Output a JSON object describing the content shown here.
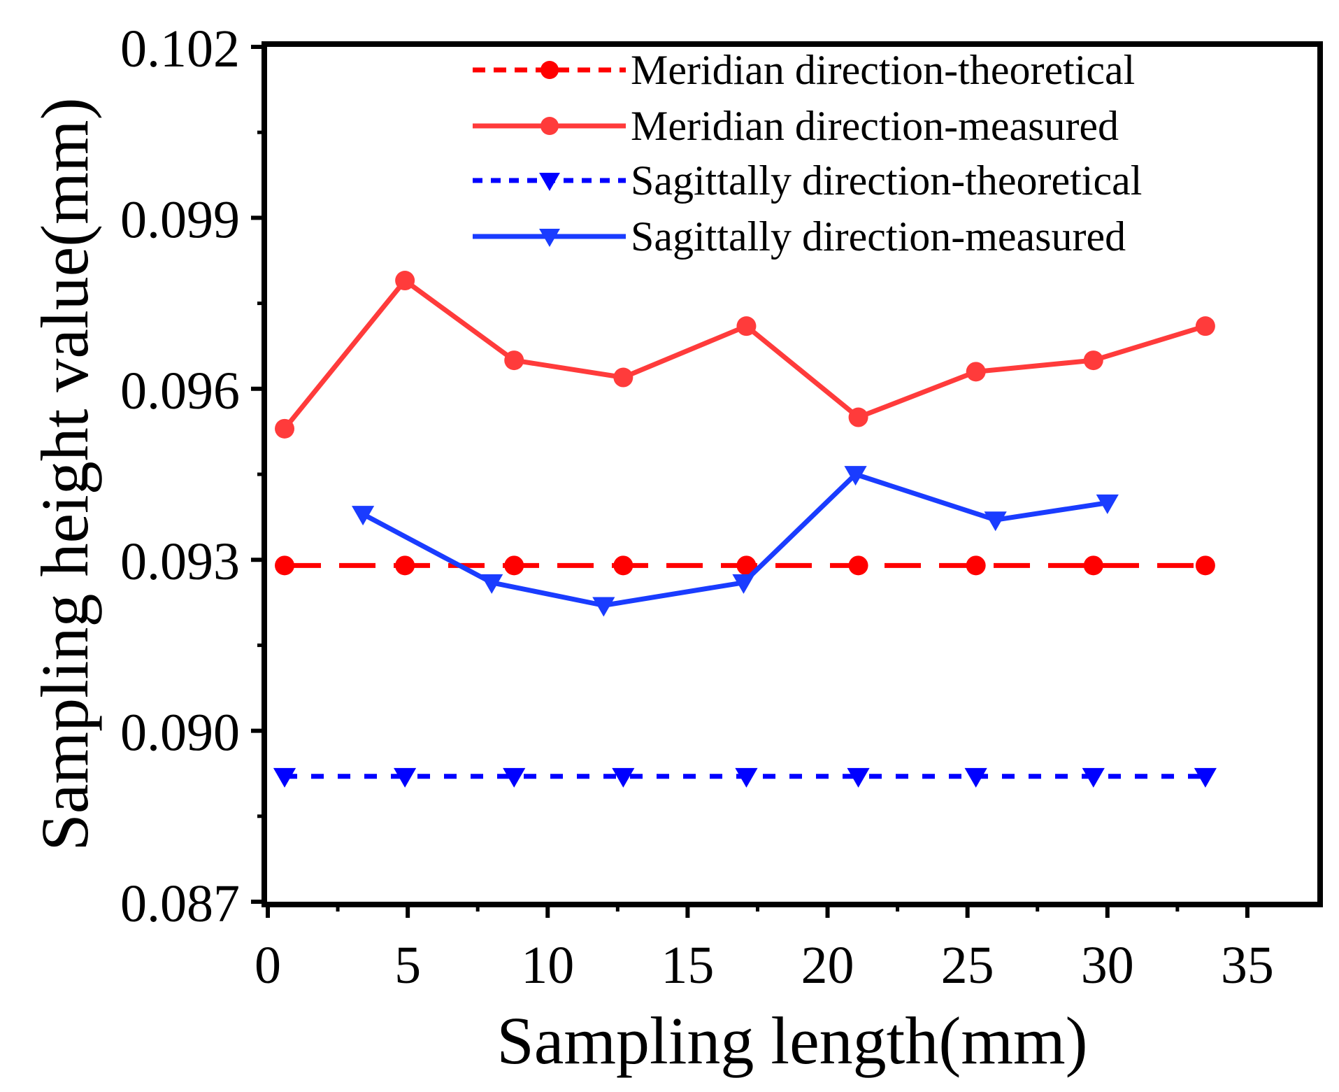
{
  "chart_data": {
    "type": "line",
    "xlabel": "Sampling length(mm)",
    "ylabel": "Sampling height value(mm)",
    "xlim": [
      0,
      37.5
    ],
    "ylim": [
      0.087,
      0.102
    ],
    "xticks": [
      "0",
      "5",
      "10",
      "15",
      "20",
      "25",
      "30",
      "35"
    ],
    "yticks": [
      "0.087",
      "0.090",
      "0.093",
      "0.096",
      "0.099",
      "0.102"
    ],
    "grid": false,
    "legend_position": "top-right",
    "series": [
      {
        "name": "Meridian direction-theoretical",
        "color": "#ff0000",
        "line": "dashed",
        "marker": "circle",
        "x": [
          0.6,
          4.9,
          8.8,
          12.7,
          17.1,
          21.1,
          25.3,
          29.5,
          33.5
        ],
        "y": [
          0.0929,
          0.0929,
          0.0929,
          0.0929,
          0.0929,
          0.0929,
          0.0929,
          0.0929,
          0.0929
        ]
      },
      {
        "name": "Meridian direction-measured",
        "color": "#ff3b3b",
        "line": "solid",
        "marker": "circle",
        "x": [
          0.6,
          4.9,
          8.8,
          12.7,
          17.1,
          21.1,
          25.3,
          29.5,
          33.5
        ],
        "y": [
          0.0953,
          0.0979,
          0.0965,
          0.0962,
          0.0971,
          0.0955,
          0.0963,
          0.0965,
          0.0971
        ]
      },
      {
        "name": "Sagittally direction-theoretical",
        "color": "#0000ff",
        "line": "dotted",
        "marker": "triangle-down",
        "x": [
          0.6,
          4.9,
          8.8,
          12.7,
          17.1,
          21.1,
          25.3,
          29.5,
          33.5
        ],
        "y": [
          0.0892,
          0.0892,
          0.0892,
          0.0892,
          0.0892,
          0.0892,
          0.0892,
          0.0892,
          0.0892
        ]
      },
      {
        "name": "Sagittally direction-measured",
        "color": "#1a3cff",
        "line": "solid",
        "marker": "triangle-down",
        "x": [
          3.4,
          8.0,
          12.0,
          17.0,
          21.0,
          26.0,
          30.0
        ],
        "y": [
          0.0938,
          0.0926,
          0.0922,
          0.0926,
          0.0945,
          0.0937,
          0.094
        ]
      }
    ]
  }
}
